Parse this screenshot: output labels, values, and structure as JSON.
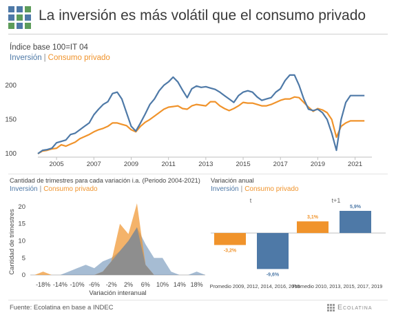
{
  "header": {
    "title": "La inversión es más volátil que el consumo privado"
  },
  "colors": {
    "inversion": "#4e79a7",
    "consumo": "#f0932b",
    "overlap": "#8e8e8e"
  },
  "footer": {
    "source": "Fuente: Ecolatina en base a INDEC",
    "brand": "Ecolatina"
  },
  "chart_data": [
    {
      "type": "line",
      "subtitle": "Índice base 100=IT 04",
      "legend": [
        "Inversión",
        "Consumo privado"
      ],
      "x_ticks": [
        "2005",
        "2007",
        "2009",
        "2011",
        "2013",
        "2015",
        "2017",
        "2019",
        "2021"
      ],
      "y_ticks": [
        100,
        150,
        200
      ],
      "ylim": [
        95,
        228
      ],
      "xlim": [
        2004.0,
        2021.9
      ],
      "x": [
        2004.0,
        2004.25,
        2004.5,
        2004.75,
        2005.0,
        2005.25,
        2005.5,
        2005.75,
        2006.0,
        2006.25,
        2006.5,
        2006.75,
        2007.0,
        2007.25,
        2007.5,
        2007.75,
        2008.0,
        2008.25,
        2008.5,
        2008.75,
        2009.0,
        2009.25,
        2009.5,
        2009.75,
        2010.0,
        2010.25,
        2010.5,
        2010.75,
        2011.0,
        2011.25,
        2011.5,
        2011.75,
        2012.0,
        2012.25,
        2012.5,
        2012.75,
        2013.0,
        2013.25,
        2013.5,
        2013.75,
        2014.0,
        2014.25,
        2014.5,
        2014.75,
        2015.0,
        2015.25,
        2015.5,
        2015.75,
        2016.0,
        2016.25,
        2016.5,
        2016.75,
        2017.0,
        2017.25,
        2017.5,
        2017.75,
        2018.0,
        2018.25,
        2018.5,
        2018.75,
        2019.0,
        2019.25,
        2019.5,
        2019.75,
        2020.0,
        2020.25,
        2020.5,
        2020.75,
        2021.0,
        2021.25,
        2021.5
      ],
      "series": [
        {
          "name": "Inversión",
          "values": [
            100,
            105,
            106,
            108,
            116,
            118,
            120,
            128,
            130,
            135,
            140,
            145,
            157,
            165,
            172,
            176,
            188,
            190,
            180,
            160,
            140,
            133,
            145,
            158,
            172,
            180,
            192,
            200,
            205,
            212,
            205,
            193,
            182,
            195,
            199,
            197,
            198,
            196,
            194,
            190,
            185,
            180,
            175,
            185,
            190,
            192,
            190,
            183,
            178,
            180,
            182,
            190,
            195,
            207,
            215,
            215,
            200,
            180,
            165,
            163,
            165,
            160,
            150,
            130,
            105,
            150,
            175,
            185,
            185,
            185,
            185
          ]
        },
        {
          "name": "Consumo privado",
          "values": [
            100,
            104,
            105,
            107,
            108,
            113,
            111,
            114,
            117,
            122,
            125,
            128,
            132,
            135,
            137,
            140,
            145,
            145,
            143,
            141,
            135,
            132,
            140,
            146,
            150,
            155,
            160,
            165,
            168,
            169,
            170,
            166,
            165,
            170,
            172,
            171,
            170,
            176,
            176,
            170,
            166,
            163,
            166,
            170,
            175,
            174,
            174,
            172,
            170,
            170,
            172,
            175,
            178,
            180,
            180,
            183,
            182,
            175,
            168,
            162,
            166,
            164,
            160,
            150,
            124,
            140,
            145,
            148,
            148,
            148,
            148
          ]
        }
      ]
    },
    {
      "type": "area",
      "title": "Cantidad de trimestres para cada variación i.a. (Periodo 2004-2021)",
      "legend": [
        "Inversión",
        "Consumo privado"
      ],
      "xlabel": "Variación interanual",
      "ylabel": "Cantidad de trimestres",
      "y_ticks": [
        0,
        5,
        10,
        15,
        20
      ],
      "ylim": [
        -1,
        22
      ],
      "xlim": [
        -21,
        20
      ],
      "x_ticks": [
        "-18%",
        "-14%",
        "-10%",
        "-6%",
        "-2%",
        "2%",
        "6%",
        "10%",
        "14%",
        "18%"
      ],
      "x_tick_values": [
        -18,
        -14,
        -10,
        -6,
        -2,
        2,
        6,
        10,
        14,
        18
      ],
      "x": [
        -20,
        -18,
        -16,
        -14,
        -12,
        -10,
        -8,
        -6,
        -4,
        -2,
        0,
        2,
        4,
        6,
        8,
        10,
        12,
        14,
        16,
        18,
        20
      ],
      "series": [
        {
          "name": "Inversión",
          "values": [
            0,
            0,
            0,
            0,
            1,
            2,
            3,
            2,
            4,
            5,
            7,
            10,
            14,
            9,
            5,
            5,
            1,
            0,
            0,
            1,
            0
          ]
        },
        {
          "name": "Consumo privado",
          "values": [
            0,
            1,
            0,
            0,
            0,
            0,
            0,
            0,
            1,
            4,
            15,
            12,
            21,
            3,
            0,
            0,
            0,
            0,
            0,
            0,
            0
          ]
        }
      ]
    },
    {
      "type": "bar",
      "title": "Variación anual",
      "legend": [
        "Inversión",
        "Consumo privado"
      ],
      "group_headers": [
        "t",
        "t+1"
      ],
      "categories": [
        "Promedio 2009, 2012, 2014, 2016, 2018",
        "Promedio 2010, 2013, 2015, 2017, 2019"
      ],
      "ylim": [
        -11,
        7
      ],
      "series": [
        {
          "name": "Consumo privado",
          "values": [
            -3.2,
            3.1
          ],
          "labels": [
            "-3,2%",
            "3,1%"
          ]
        },
        {
          "name": "Inversión",
          "values": [
            -9.6,
            5.9
          ],
          "labels": [
            "-9,6%",
            "5,9%"
          ]
        }
      ]
    }
  ]
}
